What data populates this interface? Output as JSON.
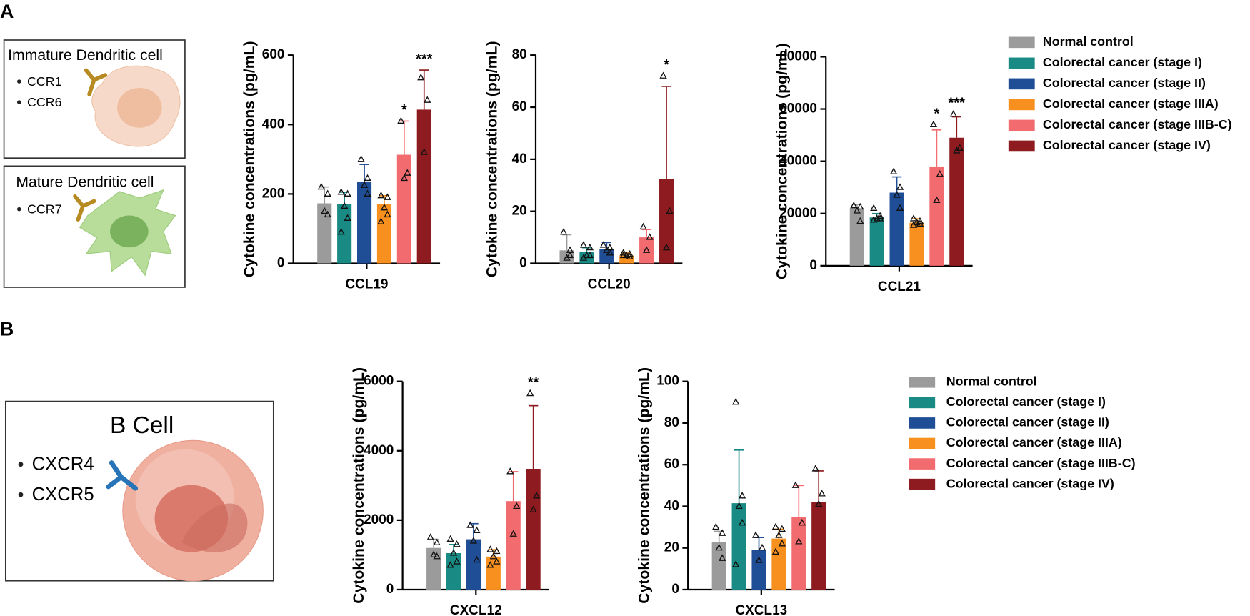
{
  "panels": [
    "A",
    "B"
  ],
  "diagrams": [
    {
      "title": "Immature Dendritic cell",
      "receptors": [
        "CCR1",
        "CCR6"
      ]
    },
    {
      "title": "Mature Dendritic cell",
      "receptors": [
        "CCR7"
      ]
    },
    {
      "title": "B Cell",
      "receptors": [
        "CXCR4",
        "CXCR5"
      ]
    }
  ],
  "chart_data": [
    {
      "type": "bar",
      "categories": [
        "CCL19"
      ],
      "ylabel": "Cytokine concentrations (pg/mL)",
      "ylim": [
        0,
        600
      ],
      "yticks": [
        0,
        200,
        400,
        600
      ],
      "legend": true,
      "series": [
        {
          "name": "Normal control",
          "color": "#9b9b9b",
          "values": [
            173
          ],
          "errors": [
            47
          ],
          "points": [
            [
              220,
              200,
              150,
              140
            ]
          ]
        },
        {
          "name": "Colorectal cancer (stage I)",
          "color": "#1a8a84",
          "values": [
            172
          ],
          "errors": [
            33
          ],
          "points": [
            [
              205,
              200,
              165,
              130,
              90
            ]
          ]
        },
        {
          "name": "Colorectal cancer (stage II)",
          "color": "#1f4d96",
          "values": [
            235
          ],
          "errors": [
            50
          ],
          "points": [
            [
              300,
              245,
              225,
              200
            ]
          ]
        },
        {
          "name": "Colorectal cancer (stage IIIA)",
          "color": "#f7901e",
          "values": [
            172
          ],
          "errors": [
            23
          ],
          "points": [
            [
              195,
              190,
              160,
              140,
              120
            ]
          ]
        },
        {
          "name": "Colorectal cancer (stage IIIB-C)",
          "color": "#f26b6f",
          "values": [
            313
          ],
          "errors": [
            97
          ],
          "points": [
            [
              410,
              260,
              245
            ]
          ],
          "annotation": "*"
        },
        {
          "name": "Colorectal cancer (stage IV)",
          "color": "#8e1b1f",
          "values": [
            443
          ],
          "errors": [
            114
          ],
          "points": [
            [
              535,
              470,
              320
            ]
          ],
          "annotation": "***"
        }
      ]
    },
    {
      "type": "bar",
      "categories": [
        "CCL20"
      ],
      "ylabel": "Cytokine concentrations (pg/mL)",
      "ylim": [
        0,
        80
      ],
      "yticks": [
        0,
        20,
        40,
        60,
        80
      ],
      "series": [
        {
          "color": "#9b9b9b",
          "values": [
            5
          ],
          "errors": [
            6
          ],
          "points": [
            [
              12,
              5,
              2,
              3
            ]
          ]
        },
        {
          "color": "#1a8a84",
          "values": [
            4.5
          ],
          "errors": [
            1.5
          ],
          "points": [
            [
              7,
              6,
              3,
              3,
              2
            ]
          ]
        },
        {
          "color": "#1f4d96",
          "values": [
            5.5
          ],
          "errors": [
            2.5
          ],
          "points": [
            [
              7,
              6,
              5,
              4
            ]
          ]
        },
        {
          "color": "#f7901e",
          "values": [
            3
          ],
          "errors": [
            1
          ],
          "points": [
            [
              4,
              3.5,
              3,
              2.5,
              3
            ]
          ]
        },
        {
          "color": "#f26b6f",
          "values": [
            10
          ],
          "errors": [
            3
          ],
          "points": [
            [
              14,
              10,
              5
            ]
          ]
        },
        {
          "color": "#8e1b1f",
          "values": [
            32.5
          ],
          "errors": [
            35.5
          ],
          "points": [
            [
              72,
              20,
              6
            ]
          ],
          "annotation": "*"
        }
      ]
    },
    {
      "type": "bar",
      "categories": [
        "CCL21"
      ],
      "ylabel": "Cytokine concentrations (pg/mL)",
      "ylim": [
        0,
        80000
      ],
      "yticks": [
        0,
        20000,
        40000,
        60000,
        80000
      ],
      "series": [
        {
          "color": "#9b9b9b",
          "values": [
            22000
          ],
          "errors": [
            1500
          ],
          "points": [
            [
              23000,
              22500,
              21000,
              17000
            ]
          ]
        },
        {
          "color": "#1a8a84",
          "values": [
            18500
          ],
          "errors": [
            1500
          ],
          "points": [
            [
              22000,
              19000,
              18000,
              18000,
              17500
            ]
          ]
        },
        {
          "color": "#1f4d96",
          "values": [
            28000
          ],
          "errors": [
            6000
          ],
          "points": [
            [
              36000,
              30000,
              27000,
              22000
            ]
          ]
        },
        {
          "color": "#f7901e",
          "values": [
            16500
          ],
          "errors": [
            1500
          ],
          "points": [
            [
              18000,
              17000,
              16500,
              16000,
              15500
            ]
          ]
        },
        {
          "color": "#f26b6f",
          "values": [
            38000
          ],
          "errors": [
            14000
          ],
          "points": [
            [
              54000,
              35000,
              25000
            ]
          ],
          "annotation": "*"
        },
        {
          "color": "#8e1b1f",
          "values": [
            49000
          ],
          "errors": [
            8000
          ],
          "points": [
            [
              58000,
              45000,
              44000
            ]
          ],
          "annotation": "***"
        }
      ]
    },
    {
      "type": "bar",
      "categories": [
        "CXCL12"
      ],
      "ylabel": "Cytokine concentrations (pg/mL)",
      "ylim": [
        0,
        6000
      ],
      "yticks": [
        0,
        2000,
        4000,
        6000
      ],
      "legend": true,
      "series": [
        {
          "name": "Normal control",
          "color": "#9b9b9b",
          "values": [
            1200
          ],
          "errors": [
            250
          ],
          "points": [
            [
              1500,
              1350,
              1000,
              950
            ]
          ]
        },
        {
          "name": "Colorectal cancer (stage I)",
          "color": "#1a8a84",
          "values": [
            1050
          ],
          "errors": [
            250
          ],
          "points": [
            [
              1450,
              1300,
              1050,
              800,
              700
            ]
          ]
        },
        {
          "name": "Colorectal cancer (stage II)",
          "color": "#1f4d96",
          "values": [
            1450
          ],
          "errors": [
            450
          ],
          "points": [
            [
              1850,
              1700,
              1400,
              850
            ]
          ]
        },
        {
          "name": "Colorectal cancer (stage IIIA)",
          "color": "#f7901e",
          "values": [
            950
          ],
          "errors": [
            200
          ],
          "points": [
            [
              1150,
              1100,
              950,
              800,
              700
            ]
          ]
        },
        {
          "name": "Colorectal cancer (stage IIIB-C)",
          "color": "#f26b6f",
          "values": [
            2550
          ],
          "errors": [
            850
          ],
          "points": [
            [
              3400,
              2400,
              1600
            ]
          ]
        },
        {
          "name": "Colorectal cancer (stage IV)",
          "color": "#8e1b1f",
          "values": [
            3480
          ],
          "errors": [
            1820
          ],
          "points": [
            [
              5650,
              2700,
              2300
            ]
          ],
          "annotation": "**"
        }
      ]
    },
    {
      "type": "bar",
      "categories": [
        "CXCL13"
      ],
      "ylabel": "Cytokine concentrations (pg/mL)",
      "ylim": [
        0,
        100
      ],
      "yticks": [
        0,
        20,
        40,
        60,
        80,
        100
      ],
      "series": [
        {
          "color": "#9b9b9b",
          "values": [
            23
          ],
          "errors": [
            5
          ],
          "points": [
            [
              30,
              27,
              20,
              15
            ]
          ]
        },
        {
          "color": "#1a8a84",
          "values": [
            41.5
          ],
          "errors": [
            25.5
          ],
          "points": [
            [
              90,
              45,
              40,
              32,
              12
            ]
          ]
        },
        {
          "color": "#1f4d96",
          "values": [
            19
          ],
          "errors": [
            6
          ],
          "points": [
            [
              26,
              20,
              14
            ]
          ]
        },
        {
          "color": "#f7901e",
          "values": [
            24.5
          ],
          "errors": [
            4.5
          ],
          "points": [
            [
              30,
              29,
              26,
              22,
              18
            ]
          ]
        },
        {
          "color": "#f26b6f",
          "values": [
            35
          ],
          "errors": [
            15
          ],
          "points": [
            [
              50,
              32,
              23
            ]
          ]
        },
        {
          "color": "#8e1b1f",
          "values": [
            42
          ],
          "errors": [
            15
          ],
          "points": [
            [
              58,
              46,
              41
            ]
          ]
        }
      ]
    }
  ]
}
